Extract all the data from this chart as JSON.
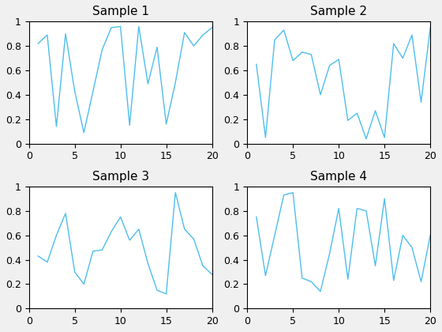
{
  "titles": [
    "Sample 1",
    "Sample 2",
    "Sample 3",
    "Sample 4"
  ],
  "xlim": [
    0,
    20
  ],
  "ylim": [
    0,
    1
  ],
  "line_color": "#4DBEEE",
  "line_width": 1.0,
  "sample1_x": [
    1,
    2,
    3,
    4,
    5,
    6,
    7,
    8,
    9,
    10,
    11,
    12,
    13,
    14,
    15,
    16,
    17,
    18,
    19,
    20
  ],
  "sample1_y": [
    0.82,
    0.89,
    0.14,
    0.9,
    0.43,
    0.09,
    0.43,
    0.77,
    0.95,
    0.96,
    0.15,
    0.96,
    0.49,
    0.79,
    0.16,
    0.5,
    0.91,
    0.8,
    0.89,
    0.95
  ],
  "sample2_x": [
    1,
    2,
    3,
    4,
    5,
    6,
    7,
    8,
    9,
    10,
    11,
    12,
    13,
    14,
    15,
    16,
    17,
    18,
    19,
    20
  ],
  "sample2_y": [
    0.65,
    0.05,
    0.85,
    0.93,
    0.68,
    0.75,
    0.73,
    0.4,
    0.64,
    0.69,
    0.19,
    0.25,
    0.04,
    0.27,
    0.05,
    0.82,
    0.7,
    0.89,
    0.34,
    0.95
  ],
  "sample3_x": [
    1,
    2,
    3,
    4,
    5,
    6,
    7,
    8,
    9,
    10,
    11,
    12,
    13,
    14,
    15,
    16,
    17,
    18,
    19,
    20
  ],
  "sample3_y": [
    0.43,
    0.38,
    0.6,
    0.78,
    0.3,
    0.2,
    0.47,
    0.48,
    0.63,
    0.75,
    0.56,
    0.65,
    0.37,
    0.15,
    0.12,
    0.95,
    0.65,
    0.57,
    0.35,
    0.28
  ],
  "sample4_x": [
    1,
    2,
    3,
    4,
    5,
    6,
    7,
    8,
    9,
    10,
    11,
    12,
    13,
    14,
    15,
    16,
    17,
    18,
    19,
    20
  ],
  "sample4_y": [
    0.75,
    0.27,
    0.6,
    0.93,
    0.95,
    0.25,
    0.22,
    0.14,
    0.45,
    0.82,
    0.24,
    0.82,
    0.8,
    0.35,
    0.9,
    0.23,
    0.6,
    0.5,
    0.22,
    0.6
  ],
  "xticks": [
    0,
    5,
    10,
    15,
    20
  ],
  "yticks": [
    0,
    0.2,
    0.4,
    0.6,
    0.8,
    1
  ],
  "title_fontsize": 11,
  "tick_fontsize": 9,
  "background_color": "#ffffff",
  "figure_background": "#f0f0f0"
}
